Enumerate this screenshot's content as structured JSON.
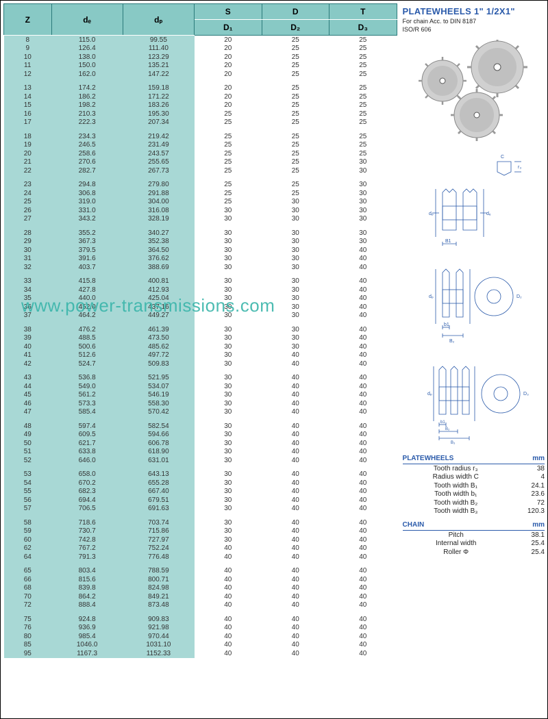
{
  "headers": {
    "z": "Z",
    "de": "dₑ",
    "dp": "dₚ",
    "s": "S",
    "d": "D",
    "t": "T",
    "d1": "D₁",
    "d2": "D₂",
    "d3": "D₃"
  },
  "groups": [
    [
      [
        "8",
        "115.0",
        "99.55",
        "20",
        "25",
        "25"
      ],
      [
        "9",
        "126.4",
        "111.40",
        "20",
        "25",
        "25"
      ],
      [
        "10",
        "138.0",
        "123.29",
        "20",
        "25",
        "25"
      ],
      [
        "11",
        "150.0",
        "135.21",
        "20",
        "25",
        "25"
      ],
      [
        "12",
        "162.0",
        "147.22",
        "20",
        "25",
        "25"
      ]
    ],
    [
      [
        "13",
        "174.2",
        "159.18",
        "20",
        "25",
        "25"
      ],
      [
        "14",
        "186.2",
        "171.22",
        "20",
        "25",
        "25"
      ],
      [
        "15",
        "198.2",
        "183.26",
        "20",
        "25",
        "25"
      ],
      [
        "16",
        "210.3",
        "195.30",
        "25",
        "25",
        "25"
      ],
      [
        "17",
        "222.3",
        "207.34",
        "25",
        "25",
        "25"
      ]
    ],
    [
      [
        "18",
        "234.3",
        "219.42",
        "25",
        "25",
        "25"
      ],
      [
        "19",
        "246.5",
        "231.49",
        "25",
        "25",
        "25"
      ],
      [
        "20",
        "258.6",
        "243.57",
        "25",
        "25",
        "25"
      ],
      [
        "21",
        "270.6",
        "255.65",
        "25",
        "25",
        "30"
      ],
      [
        "22",
        "282.7",
        "267.73",
        "25",
        "25",
        "30"
      ]
    ],
    [
      [
        "23",
        "294.8",
        "279.80",
        "25",
        "25",
        "30"
      ],
      [
        "24",
        "306.8",
        "291.88",
        "25",
        "25",
        "30"
      ],
      [
        "25",
        "319.0",
        "304.00",
        "25",
        "30",
        "30"
      ],
      [
        "26",
        "331.0",
        "316.08",
        "30",
        "30",
        "30"
      ],
      [
        "27",
        "343.2",
        "328.19",
        "30",
        "30",
        "30"
      ]
    ],
    [
      [
        "28",
        "355.2",
        "340.27",
        "30",
        "30",
        "30"
      ],
      [
        "29",
        "367.3",
        "352.38",
        "30",
        "30",
        "30"
      ],
      [
        "30",
        "379.5",
        "364.50",
        "30",
        "30",
        "40"
      ],
      [
        "31",
        "391.6",
        "376.62",
        "30",
        "30",
        "40"
      ],
      [
        "32",
        "403.7",
        "388.69",
        "30",
        "30",
        "40"
      ]
    ],
    [
      [
        "33",
        "415.8",
        "400.81",
        "30",
        "30",
        "40"
      ],
      [
        "34",
        "427.8",
        "412.93",
        "30",
        "30",
        "40"
      ],
      [
        "35",
        "440.0",
        "425.04",
        "30",
        "30",
        "40"
      ],
      [
        "36",
        "452.0",
        "437.16",
        "30",
        "30",
        "40"
      ],
      [
        "37",
        "464.2",
        "449.27",
        "30",
        "30",
        "40"
      ]
    ],
    [
      [
        "38",
        "476.2",
        "461.39",
        "30",
        "30",
        "40"
      ],
      [
        "39",
        "488.5",
        "473.50",
        "30",
        "30",
        "40"
      ],
      [
        "40",
        "500.6",
        "485.62",
        "30",
        "30",
        "40"
      ],
      [
        "41",
        "512.6",
        "497.72",
        "30",
        "40",
        "40"
      ],
      [
        "42",
        "524.7",
        "509.83",
        "30",
        "40",
        "40"
      ]
    ],
    [
      [
        "43",
        "536.8",
        "521.95",
        "30",
        "40",
        "40"
      ],
      [
        "44",
        "549.0",
        "534.07",
        "30",
        "40",
        "40"
      ],
      [
        "45",
        "561.2",
        "546.19",
        "30",
        "40",
        "40"
      ],
      [
        "46",
        "573.3",
        "558.30",
        "30",
        "40",
        "40"
      ],
      [
        "47",
        "585.4",
        "570.42",
        "30",
        "40",
        "40"
      ]
    ],
    [
      [
        "48",
        "597.4",
        "582.54",
        "30",
        "40",
        "40"
      ],
      [
        "49",
        "609.5",
        "594.66",
        "30",
        "40",
        "40"
      ],
      [
        "50",
        "621.7",
        "606.78",
        "30",
        "40",
        "40"
      ],
      [
        "51",
        "633.8",
        "618.90",
        "30",
        "40",
        "40"
      ],
      [
        "52",
        "646.0",
        "631.01",
        "30",
        "40",
        "40"
      ]
    ],
    [
      [
        "53",
        "658.0",
        "643.13",
        "30",
        "40",
        "40"
      ],
      [
        "54",
        "670.2",
        "655.28",
        "30",
        "40",
        "40"
      ],
      [
        "55",
        "682.3",
        "667.40",
        "30",
        "40",
        "40"
      ],
      [
        "56",
        "694.4",
        "679.51",
        "30",
        "40",
        "40"
      ],
      [
        "57",
        "706.5",
        "691.63",
        "30",
        "40",
        "40"
      ]
    ],
    [
      [
        "58",
        "718.6",
        "703.74",
        "30",
        "40",
        "40"
      ],
      [
        "59",
        "730.7",
        "715.86",
        "30",
        "40",
        "40"
      ],
      [
        "60",
        "742.8",
        "727.97",
        "30",
        "40",
        "40"
      ],
      [
        "62",
        "767.2",
        "752.24",
        "40",
        "40",
        "40"
      ],
      [
        "64",
        "791.3",
        "776.48",
        "40",
        "40",
        "40"
      ]
    ],
    [
      [
        "65",
        "803.4",
        "788.59",
        "40",
        "40",
        "40"
      ],
      [
        "66",
        "815.6",
        "800.71",
        "40",
        "40",
        "40"
      ],
      [
        "68",
        "839.8",
        "824.98",
        "40",
        "40",
        "40"
      ],
      [
        "70",
        "864.2",
        "849.21",
        "40",
        "40",
        "40"
      ],
      [
        "72",
        "888.4",
        "873.48",
        "40",
        "40",
        "40"
      ]
    ],
    [
      [
        "75",
        "924.8",
        "909.83",
        "40",
        "40",
        "40"
      ],
      [
        "76",
        "936.9",
        "921.98",
        "40",
        "40",
        "40"
      ],
      [
        "80",
        "985.4",
        "970.44",
        "40",
        "40",
        "40"
      ],
      [
        "85",
        "1046.0",
        "1031.10",
        "40",
        "40",
        "40"
      ],
      [
        "95",
        "1167.3",
        "1152.33",
        "40",
        "40",
        "40"
      ]
    ]
  ],
  "right": {
    "title": "PLATEWHEELS  1\" 1/2X1\"",
    "sub1": "For chain Acc. to DIN 8187",
    "sub2": "ISO/R 606",
    "platewheels_header": "PLATEWHEELS",
    "chain_header": "CHAIN",
    "mm": "mm",
    "specs_pw": [
      [
        "Tooth radius r₃",
        "38"
      ],
      [
        "Radius width C",
        "4"
      ],
      [
        "Tooth width B₁",
        "24.1"
      ],
      [
        "Tooth width b₁",
        "23.6"
      ],
      [
        "Tooth width B₂",
        "72"
      ],
      [
        "Tooth width B₃",
        "120.3"
      ]
    ],
    "specs_chain": [
      [
        "Pitch",
        "38.1"
      ],
      [
        "Internal width",
        "25.4"
      ],
      [
        "Roller Φ",
        "25.4"
      ]
    ]
  },
  "watermark": "www.power-transmissions.com",
  "colors": {
    "header_bg": "#88c9c5",
    "highlight_bg": "#a8d8d5",
    "title_color": "#2a5aaa",
    "watermark_color": "#3ab5aa"
  }
}
